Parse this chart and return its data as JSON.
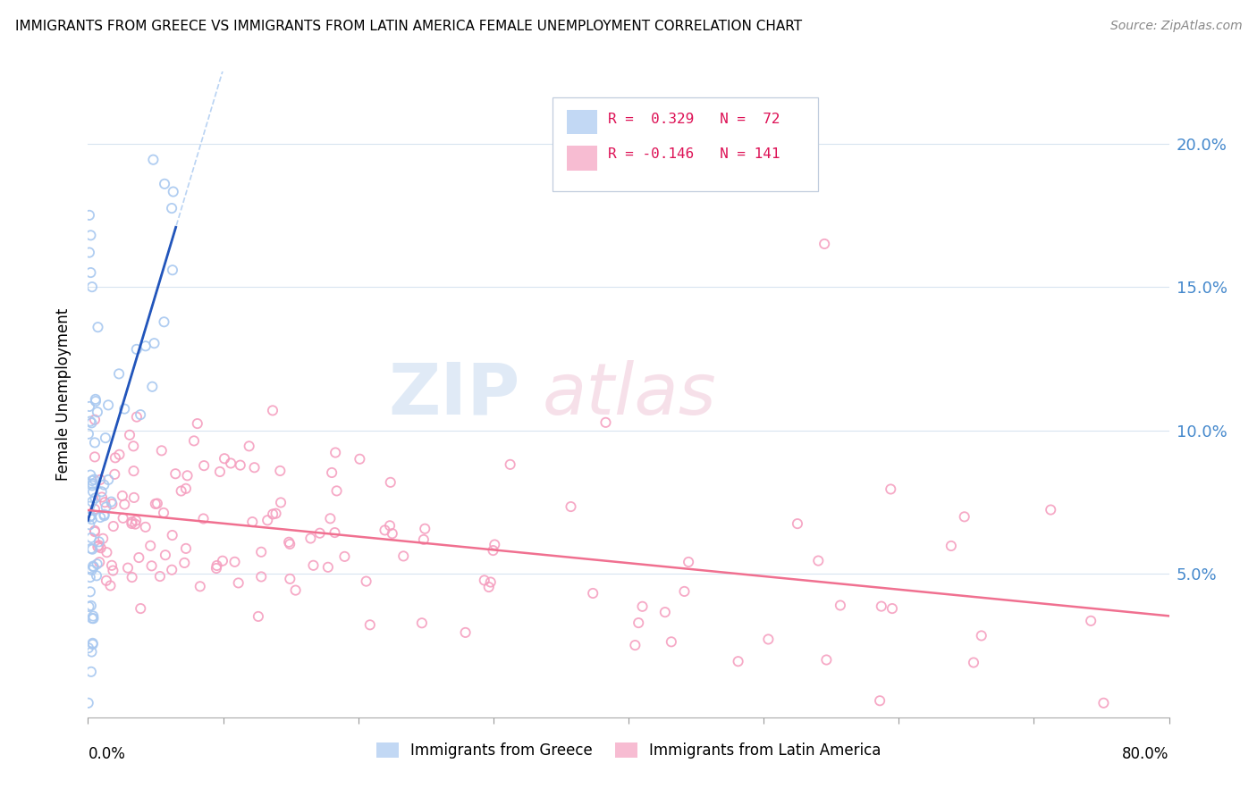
{
  "title": "IMMIGRANTS FROM GREECE VS IMMIGRANTS FROM LATIN AMERICA FEMALE UNEMPLOYMENT CORRELATION CHART",
  "source": "Source: ZipAtlas.com",
  "ylabel": "Female Unemployment",
  "yticks": [
    "5.0%",
    "10.0%",
    "15.0%",
    "20.0%"
  ],
  "ytick_vals": [
    0.05,
    0.1,
    0.15,
    0.2
  ],
  "xlim": [
    0.0,
    0.8
  ],
  "ylim": [
    0.0,
    0.225
  ],
  "color_greece": "#a8c8f0",
  "color_latam": "#f5a0c0",
  "color_greece_line": "#2255bb",
  "color_latam_line": "#f07090",
  "color_greece_dash": "#a8c8f0",
  "watermark_zip_color": "#c8daf0",
  "watermark_atlas_color": "#f0c8d8"
}
